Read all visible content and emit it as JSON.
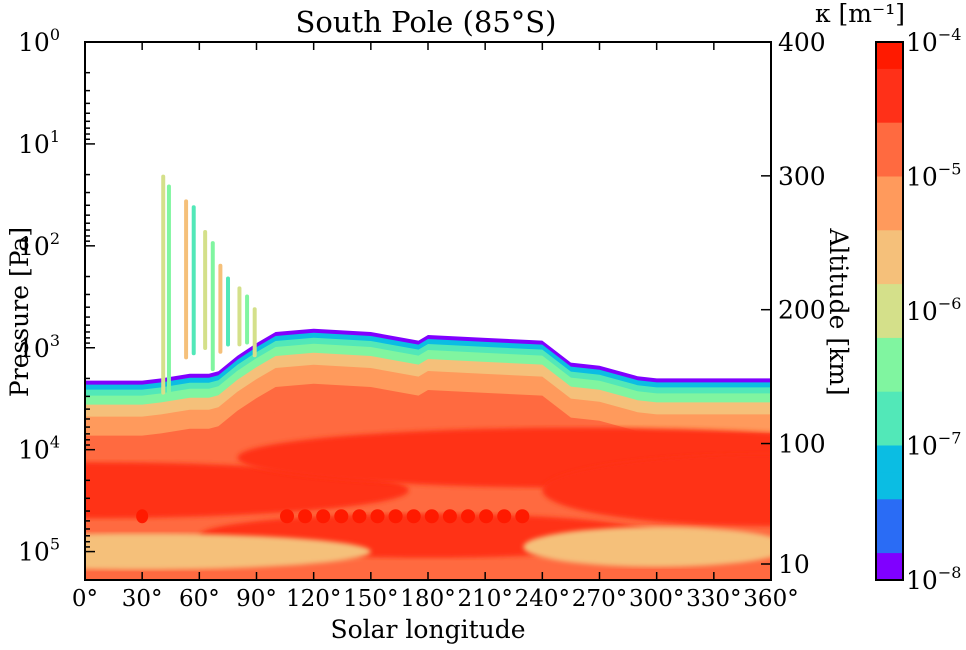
{
  "chart_data": {
    "type": "heatmap",
    "title": "South Pole (85°S)",
    "xlabel": "Solar longitude",
    "ylabel_left": "Pressure [Pa]",
    "ylabel_right": "Altitude [km]",
    "colorbar_label": "κ [m⁻¹]",
    "x_ticks": [
      "0°",
      "30°",
      "60°",
      "90°",
      "120°",
      "150°",
      "180°",
      "210°",
      "240°",
      "270°",
      "300°",
      "330°",
      "360°"
    ],
    "x_values": [
      0,
      30,
      60,
      90,
      120,
      150,
      180,
      210,
      240,
      270,
      300,
      330,
      360
    ],
    "xlim": [
      0,
      360
    ],
    "pressure_ticks": [
      {
        "base": "10",
        "exp": "0",
        "value": 1
      },
      {
        "base": "10",
        "exp": "1",
        "value": 10
      },
      {
        "base": "10",
        "exp": "2",
        "value": 100
      },
      {
        "base": "10",
        "exp": "3",
        "value": 1000
      },
      {
        "base": "10",
        "exp": "4",
        "value": 10000
      },
      {
        "base": "10",
        "exp": "5",
        "value": 100000
      }
    ],
    "pressure_scale": "log",
    "pressure_range_pa": [
      1,
      190000
    ],
    "altitude_ticks": [
      {
        "label": "400",
        "value": 400
      },
      {
        "label": "300",
        "value": 300
      },
      {
        "label": "200",
        "value": 200
      },
      {
        "label": "100",
        "value": 100
      },
      {
        "label": "10",
        "value": 10
      }
    ],
    "colorbar_ticks": [
      {
        "base": "10",
        "exp": "−4",
        "value": 0.0001
      },
      {
        "base": "10",
        "exp": "−5",
        "value": 1e-05
      },
      {
        "base": "10",
        "exp": "−6",
        "value": 1e-06
      },
      {
        "base": "10",
        "exp": "−7",
        "value": 1e-07
      },
      {
        "base": "10",
        "exp": "−8",
        "value": 1e-08
      }
    ],
    "colorbar_range": [
      1e-08,
      0.0001
    ],
    "colorbar_scale": "log",
    "colormap": "rainbow",
    "colormap_stops": [
      "#8000ff",
      "#2a6cf5",
      "#0bbde3",
      "#52e8b8",
      "#80f5a0",
      "#d4e08a",
      "#f5c07a",
      "#ff9a5c",
      "#ff6a40",
      "#ff3018",
      "#ff1a00"
    ],
    "cloud_top_pressure_pa": {
      "ls": [
        0,
        30,
        40,
        55,
        65,
        70,
        80,
        90,
        100,
        120,
        150,
        175,
        180,
        210,
        240,
        255,
        270,
        290,
        300,
        330,
        360
      ],
      "pressure": [
        2100,
        2100,
        2000,
        1800,
        1800,
        1700,
        1200,
        900,
        700,
        650,
        700,
        850,
        750,
        800,
        850,
        1400,
        1500,
        1900,
        2000,
        2000,
        2000
      ]
    },
    "detached_layers_ls_range": [
      40,
      90
    ],
    "detached_layers_top_pressure_pa": 20,
    "max_opacity_band_pressure_pa": 45000
  }
}
